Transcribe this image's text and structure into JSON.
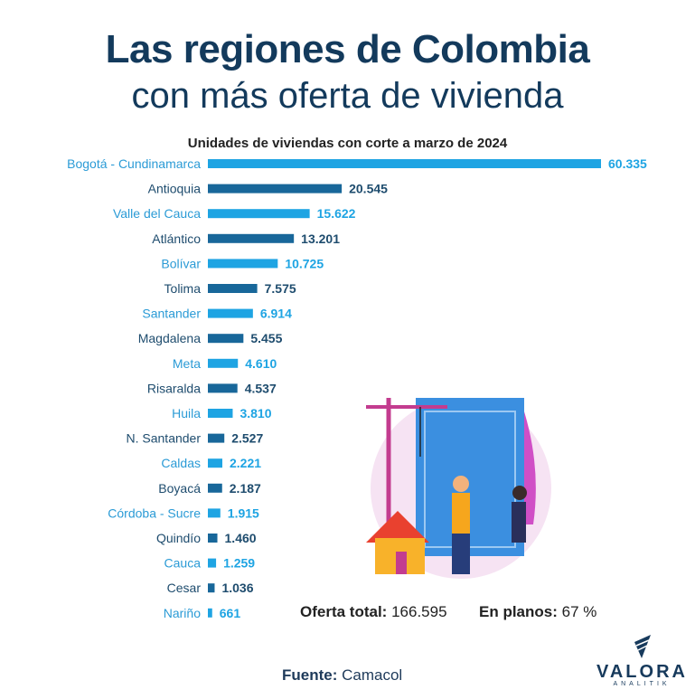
{
  "header": {
    "title_line1": "Las regiones de Colombia",
    "title_line2": "con más oferta de vivienda"
  },
  "chart_data": {
    "type": "bar",
    "orientation": "horizontal",
    "title": "Unidades de viviendas con corte a marzo de 2024",
    "categories": [
      "Bogotá - Cundinamarca",
      "Antioquia",
      "Valle del Cauca",
      "Atlántico",
      "Bolívar",
      "Tolima",
      "Santander",
      "Magdalena",
      "Meta",
      "Risaralda",
      "Huila",
      "N. Santander",
      "Caldas",
      "Boyacá",
      "Córdoba - Sucre",
      "Quindío",
      "Cauca",
      "Cesar",
      "Nariño"
    ],
    "values": [
      60335,
      20545,
      15622,
      13201,
      10725,
      7575,
      6914,
      5455,
      4610,
      4537,
      3810,
      2527,
      2221,
      2187,
      1915,
      1460,
      1259,
      1036,
      661
    ],
    "value_labels": [
      "60.335",
      "20.545",
      "15.622",
      "13.201",
      "10.725",
      "7.575",
      "6.914",
      "5.455",
      "4.610",
      "4.537",
      "3.810",
      "2.527",
      "2.221",
      "2.187",
      "1.915",
      "1.460",
      "1.259",
      "1.036",
      "661"
    ],
    "colors": {
      "light": "#1ea4e3",
      "dark": "#18679a",
      "light_text": "#2b9bd6",
      "dark_text": "#1e4c6e"
    },
    "xlim": [
      0,
      60335
    ],
    "grid": false
  },
  "summary": {
    "total_label": "Oferta total:",
    "total_value": "166.595",
    "plans_label": "En planos:",
    "plans_value": "67 %"
  },
  "footer": {
    "source_label": "Fuente:",
    "source_value": "Camacol",
    "logo": "VALORA",
    "logo_sub": "ANALITIK"
  }
}
